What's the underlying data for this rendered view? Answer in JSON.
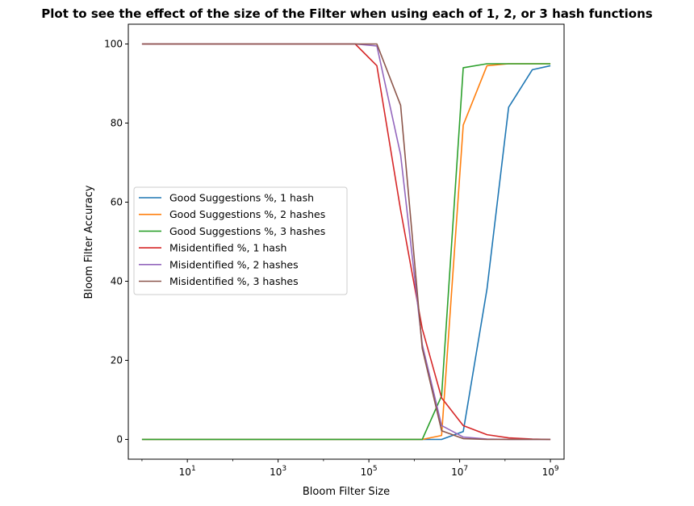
{
  "chart_data": {
    "type": "line",
    "title": "Plot to see the effect of the size of the Filter when using each of 1, 2, or 3 hash functions",
    "xlabel": "Bloom Filter Size",
    "ylabel": "Bloom Filter Accuracy",
    "xscale": "log",
    "xlim": [
      0.5,
      2000000000
    ],
    "ylim": [
      -5,
      105
    ],
    "xticks": [
      {
        "value": 10,
        "base": "10",
        "exp": "1"
      },
      {
        "value": 1000,
        "base": "10",
        "exp": "3"
      },
      {
        "value": 100000,
        "base": "10",
        "exp": "5"
      },
      {
        "value": 10000000,
        "base": "10",
        "exp": "7"
      },
      {
        "value": 1000000000,
        "base": "10",
        "exp": "9"
      }
    ],
    "yticks": [
      {
        "value": 0,
        "label": "0"
      },
      {
        "value": 20,
        "label": "20"
      },
      {
        "value": 40,
        "label": "40"
      },
      {
        "value": 60,
        "label": "60"
      },
      {
        "value": 80,
        "label": "80"
      },
      {
        "value": 100,
        "label": "100"
      }
    ],
    "grid": false,
    "legend_position": "center-left",
    "series": [
      {
        "name": "Good Suggestions %, 1 hash",
        "color": "#1f77b4",
        "x": [
          1,
          50000,
          150000,
          500000,
          1500000,
          4000000,
          12000000,
          40000000,
          120000000,
          400000000,
          1000000000
        ],
        "y": [
          0,
          0,
          0,
          0,
          0,
          0,
          2,
          38,
          84,
          93.5,
          94.5
        ]
      },
      {
        "name": "Good Suggestions %, 2 hashes",
        "color": "#ff7f0e",
        "x": [
          1,
          50000,
          150000,
          500000,
          1500000,
          4000000,
          12000000,
          40000000,
          120000000,
          400000000,
          1000000000
        ],
        "y": [
          0,
          0,
          0,
          0,
          0,
          1,
          79.5,
          94.5,
          95,
          95,
          95
        ]
      },
      {
        "name": "Good Suggestions %, 3 hashes",
        "color": "#2ca02c",
        "x": [
          1,
          50000,
          150000,
          500000,
          1500000,
          4000000,
          12000000,
          40000000,
          120000000,
          400000000,
          1000000000
        ],
        "y": [
          0,
          0,
          0,
          0,
          0,
          11,
          94,
          95,
          95,
          95,
          95
        ]
      },
      {
        "name": "Misidentified %, 1 hash",
        "color": "#d62728",
        "x": [
          1,
          50000,
          150000,
          500000,
          1500000,
          4000000,
          12000000,
          40000000,
          120000000,
          400000000,
          1000000000
        ],
        "y": [
          100,
          100,
          94.5,
          58,
          28,
          10.5,
          3.5,
          1.2,
          0.4,
          0.1,
          0
        ]
      },
      {
        "name": "Misidentified %, 2 hashes",
        "color": "#9467bd",
        "x": [
          1,
          50000,
          150000,
          500000,
          1500000,
          4000000,
          12000000,
          40000000,
          120000000,
          400000000,
          1000000000
        ],
        "y": [
          100,
          100,
          99.5,
          72,
          24,
          3.5,
          0.6,
          0.1,
          0,
          0,
          0
        ]
      },
      {
        "name": "Misidentified %, 3 hashes",
        "color": "#8c564b",
        "x": [
          1,
          50000,
          150000,
          500000,
          1500000,
          4000000,
          12000000,
          40000000,
          120000000,
          400000000,
          1000000000
        ],
        "y": [
          100,
          100,
          100,
          84.5,
          23,
          2.2,
          0.2,
          0,
          0,
          0,
          0
        ]
      }
    ]
  }
}
